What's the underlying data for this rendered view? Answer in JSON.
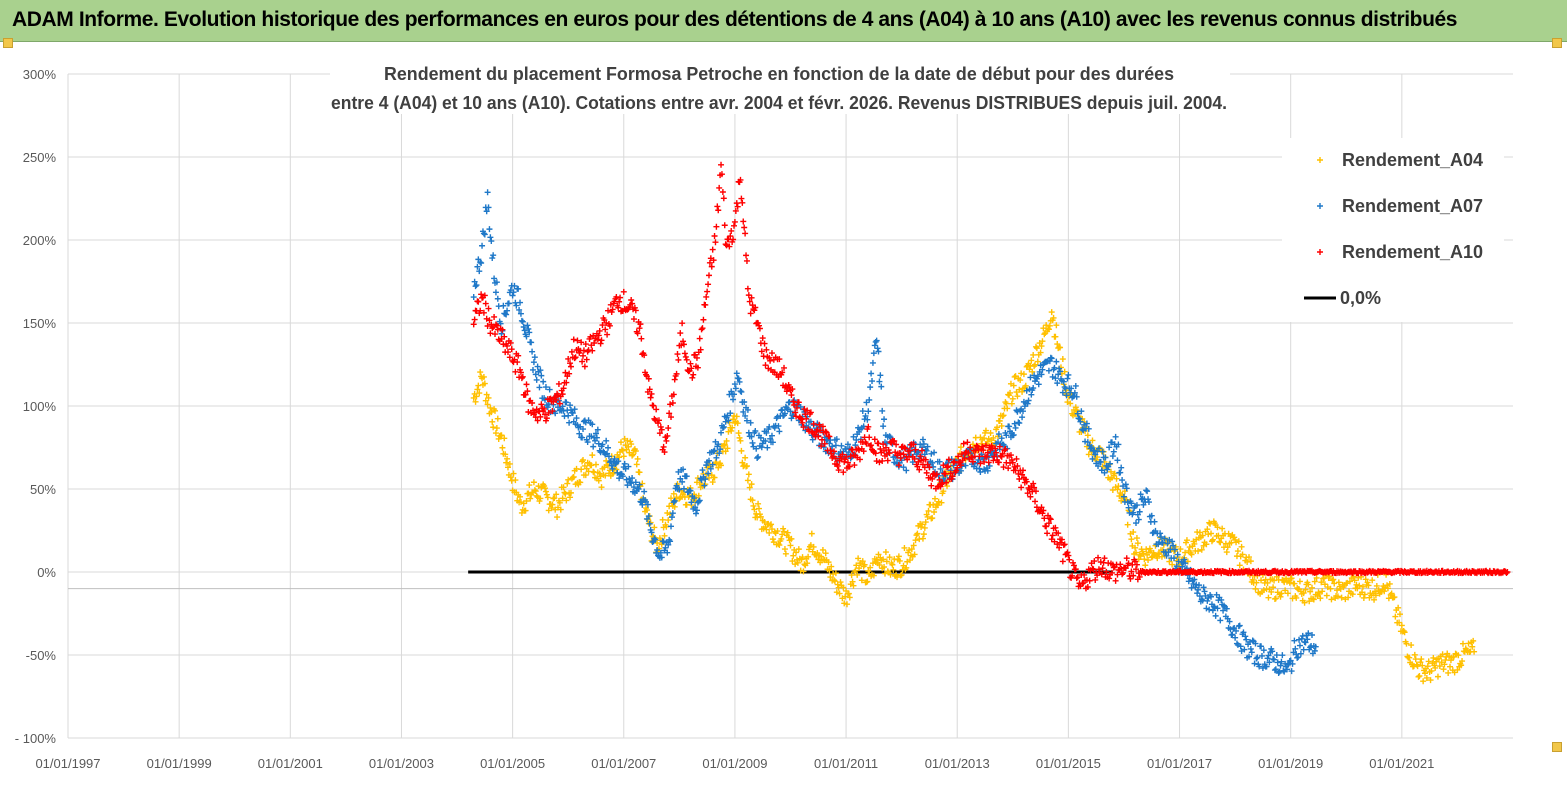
{
  "header": {
    "title": "ADAM Informe. Evolution historique des performances en euros pour des détentions de 4 ans (A04) à 10 ans (A10) avec les revenus connus distribués"
  },
  "colors": {
    "header_bg": "#a9d18e",
    "A04": "#ffc000",
    "A07": "#1f78c8",
    "A10": "#ff0000",
    "zero": "#000000",
    "grid": "#d9d9d9"
  },
  "chart_data": {
    "type": "scatter",
    "title_line1": "Rendement du placement Formosa Petroche  en fonction de la date de début pour des durées",
    "title_line2": "entre 4 (A04) et 10 ans (A10).  Cotations entre avr. 2004 et févr. 2026. Revenus DISTRIBUES depuis juil. 2004.",
    "xlabel": "",
    "ylabel": "",
    "x_range": [
      1997.0,
      2023.0
    ],
    "ylim": [
      -100,
      300
    ],
    "y_ticks": [
      300,
      250,
      200,
      150,
      100,
      50,
      0,
      -50,
      -100
    ],
    "y_tick_labels": [
      "300%",
      "250%",
      "200%",
      "150%",
      "100%",
      "50%",
      "0%",
      "-50%",
      "- 100%"
    ],
    "x_ticks": [
      1997,
      1999,
      2001,
      2003,
      2005,
      2007,
      2009,
      2011,
      2013,
      2015,
      2017,
      2019,
      2021
    ],
    "x_tick_labels": [
      "01/01/1997",
      "01/01/1999",
      "01/01/2001",
      "01/01/2003",
      "01/01/2005",
      "01/01/2007",
      "01/01/2009",
      "01/01/2011",
      "01/01/2013",
      "01/01/2015",
      "01/01/2017",
      "01/01/2019",
      "01/01/2021"
    ],
    "grid": true,
    "legend_position": "top-right",
    "series": [
      {
        "name": "Rendement_A04",
        "color": "#ffc000",
        "marker": "plus",
        "points": [
          [
            2004.3,
            105
          ],
          [
            2004.45,
            118
          ],
          [
            2004.6,
            98
          ],
          [
            2004.8,
            80
          ],
          [
            2005.0,
            55
          ],
          [
            2005.15,
            40
          ],
          [
            2005.4,
            50
          ],
          [
            2005.6,
            45
          ],
          [
            2005.8,
            40
          ],
          [
            2006.0,
            50
          ],
          [
            2006.2,
            60
          ],
          [
            2006.4,
            68
          ],
          [
            2006.6,
            58
          ],
          [
            2006.8,
            65
          ],
          [
            2007.0,
            75
          ],
          [
            2007.2,
            70
          ],
          [
            2007.4,
            35
          ],
          [
            2007.6,
            15
          ],
          [
            2007.8,
            35
          ],
          [
            2008.0,
            50
          ],
          [
            2008.2,
            45
          ],
          [
            2008.4,
            55
          ],
          [
            2008.6,
            60
          ],
          [
            2008.8,
            72
          ],
          [
            2009.0,
            95
          ],
          [
            2009.2,
            60
          ],
          [
            2009.4,
            35
          ],
          [
            2009.6,
            28
          ],
          [
            2009.8,
            22
          ],
          [
            2010.0,
            15
          ],
          [
            2010.2,
            5
          ],
          [
            2010.4,
            18
          ],
          [
            2010.6,
            8
          ],
          [
            2010.8,
            -5
          ],
          [
            2011.0,
            -15
          ],
          [
            2011.2,
            5
          ],
          [
            2011.4,
            -5
          ],
          [
            2011.6,
            10
          ],
          [
            2011.8,
            2
          ],
          [
            2012.0,
            5
          ],
          [
            2012.2,
            15
          ],
          [
            2012.4,
            28
          ],
          [
            2012.6,
            40
          ],
          [
            2012.8,
            55
          ],
          [
            2013.0,
            65
          ],
          [
            2013.2,
            75
          ],
          [
            2013.4,
            80
          ],
          [
            2013.6,
            78
          ],
          [
            2013.8,
            90
          ],
          [
            2014.0,
            110
          ],
          [
            2014.2,
            115
          ],
          [
            2014.4,
            130
          ],
          [
            2014.6,
            145
          ],
          [
            2014.7,
            158
          ],
          [
            2014.85,
            130
          ],
          [
            2015.0,
            105
          ],
          [
            2015.2,
            90
          ],
          [
            2015.4,
            75
          ],
          [
            2015.6,
            70
          ],
          [
            2015.8,
            55
          ],
          [
            2016.0,
            45
          ],
          [
            2016.2,
            15
          ],
          [
            2016.4,
            10
          ],
          [
            2016.6,
            15
          ],
          [
            2016.8,
            12
          ],
          [
            2017.0,
            8
          ],
          [
            2017.2,
            15
          ],
          [
            2017.4,
            20
          ],
          [
            2017.6,
            25
          ],
          [
            2017.8,
            20
          ],
          [
            2018.0,
            15
          ],
          [
            2018.2,
            5
          ],
          [
            2018.4,
            -5
          ],
          [
            2018.6,
            -12
          ],
          [
            2018.8,
            -8
          ],
          [
            2019.0,
            -10
          ],
          [
            2019.3,
            -12
          ],
          [
            2019.6,
            -8
          ],
          [
            2019.9,
            -12
          ],
          [
            2020.2,
            -8
          ],
          [
            2020.5,
            -10
          ],
          [
            2020.7,
            -5
          ],
          [
            2020.9,
            -25
          ],
          [
            2021.1,
            -45
          ],
          [
            2021.3,
            -58
          ],
          [
            2021.5,
            -60
          ],
          [
            2021.7,
            -55
          ],
          [
            2021.9,
            -55
          ],
          [
            2022.1,
            -50
          ],
          [
            2022.3,
            -48
          ]
        ]
      },
      {
        "name": "Rendement_A07",
        "color": "#1f78c8",
        "marker": "plus",
        "points": [
          [
            2004.3,
            170
          ],
          [
            2004.45,
            195
          ],
          [
            2004.55,
            225
          ],
          [
            2004.65,
            185
          ],
          [
            2004.8,
            150
          ],
          [
            2005.0,
            172
          ],
          [
            2005.15,
            160
          ],
          [
            2005.35,
            130
          ],
          [
            2005.55,
            110
          ],
          [
            2005.75,
            100
          ],
          [
            2005.95,
            100
          ],
          [
            2006.15,
            90
          ],
          [
            2006.35,
            85
          ],
          [
            2006.55,
            80
          ],
          [
            2006.75,
            70
          ],
          [
            2006.95,
            60
          ],
          [
            2007.15,
            55
          ],
          [
            2007.35,
            45
          ],
          [
            2007.5,
            25
          ],
          [
            2007.65,
            10
          ],
          [
            2007.8,
            15
          ],
          [
            2007.95,
            55
          ],
          [
            2008.1,
            55
          ],
          [
            2008.3,
            40
          ],
          [
            2008.5,
            65
          ],
          [
            2008.7,
            75
          ],
          [
            2008.9,
            100
          ],
          [
            2009.05,
            120
          ],
          [
            2009.2,
            95
          ],
          [
            2009.4,
            75
          ],
          [
            2009.6,
            80
          ],
          [
            2009.8,
            90
          ],
          [
            2010.0,
            100
          ],
          [
            2010.2,
            95
          ],
          [
            2010.4,
            85
          ],
          [
            2010.6,
            80
          ],
          [
            2010.8,
            75
          ],
          [
            2011.0,
            70
          ],
          [
            2011.2,
            80
          ],
          [
            2011.4,
            100
          ],
          [
            2011.55,
            140
          ],
          [
            2011.7,
            80
          ],
          [
            2011.9,
            70
          ],
          [
            2012.1,
            68
          ],
          [
            2012.3,
            75
          ],
          [
            2012.5,
            70
          ],
          [
            2012.7,
            60
          ],
          [
            2012.9,
            62
          ],
          [
            2013.1,
            65
          ],
          [
            2013.3,
            70
          ],
          [
            2013.5,
            65
          ],
          [
            2013.7,
            75
          ],
          [
            2013.9,
            80
          ],
          [
            2014.1,
            95
          ],
          [
            2014.3,
            110
          ],
          [
            2014.5,
            120
          ],
          [
            2014.7,
            125
          ],
          [
            2014.9,
            115
          ],
          [
            2015.1,
            110
          ],
          [
            2015.3,
            85
          ],
          [
            2015.5,
            70
          ],
          [
            2015.7,
            65
          ],
          [
            2015.85,
            80
          ],
          [
            2016.0,
            50
          ],
          [
            2016.2,
            35
          ],
          [
            2016.4,
            45
          ],
          [
            2016.6,
            20
          ],
          [
            2016.8,
            15
          ],
          [
            2017.0,
            5
          ],
          [
            2017.2,
            -5
          ],
          [
            2017.4,
            -15
          ],
          [
            2017.6,
            -18
          ],
          [
            2017.8,
            -25
          ],
          [
            2018.0,
            -35
          ],
          [
            2018.2,
            -45
          ],
          [
            2018.4,
            -50
          ],
          [
            2018.6,
            -52
          ],
          [
            2018.8,
            -55
          ],
          [
            2018.95,
            -60
          ],
          [
            2019.1,
            -45
          ],
          [
            2019.3,
            -42
          ],
          [
            2019.45,
            -45
          ]
        ]
      },
      {
        "name": "Rendement_A10",
        "color": "#ff0000",
        "marker": "plus",
        "points": [
          [
            2004.3,
            150
          ],
          [
            2004.45,
            165
          ],
          [
            2004.6,
            150
          ],
          [
            2004.8,
            140
          ],
          [
            2005.0,
            130
          ],
          [
            2005.15,
            120
          ],
          [
            2005.3,
            100
          ],
          [
            2005.5,
            95
          ],
          [
            2005.7,
            100
          ],
          [
            2005.9,
            110
          ],
          [
            2006.1,
            135
          ],
          [
            2006.3,
            130
          ],
          [
            2006.5,
            140
          ],
          [
            2006.7,
            150
          ],
          [
            2006.9,
            165
          ],
          [
            2007.1,
            160
          ],
          [
            2007.3,
            145
          ],
          [
            2007.45,
            110
          ],
          [
            2007.6,
            90
          ],
          [
            2007.75,
            75
          ],
          [
            2007.9,
            110
          ],
          [
            2008.05,
            145
          ],
          [
            2008.2,
            120
          ],
          [
            2008.35,
            130
          ],
          [
            2008.5,
            170
          ],
          [
            2008.65,
            200
          ],
          [
            2008.75,
            245
          ],
          [
            2008.85,
            195
          ],
          [
            2009.0,
            210
          ],
          [
            2009.1,
            240
          ],
          [
            2009.25,
            165
          ],
          [
            2009.4,
            150
          ],
          [
            2009.55,
            130
          ],
          [
            2009.7,
            125
          ],
          [
            2009.85,
            120
          ],
          [
            2010.0,
            105
          ],
          [
            2010.2,
            95
          ],
          [
            2010.4,
            90
          ],
          [
            2010.6,
            80
          ],
          [
            2010.8,
            70
          ],
          [
            2011.0,
            65
          ],
          [
            2011.2,
            70
          ],
          [
            2011.4,
            85
          ],
          [
            2011.6,
            70
          ],
          [
            2011.8,
            75
          ],
          [
            2012.0,
            70
          ],
          [
            2012.2,
            72
          ],
          [
            2012.4,
            65
          ],
          [
            2012.6,
            55
          ],
          [
            2012.8,
            60
          ],
          [
            2013.0,
            65
          ],
          [
            2013.2,
            75
          ],
          [
            2013.4,
            70
          ],
          [
            2013.6,
            72
          ],
          [
            2013.8,
            70
          ],
          [
            2014.0,
            65
          ],
          [
            2014.2,
            55
          ],
          [
            2014.4,
            45
          ],
          [
            2014.6,
            30
          ],
          [
            2014.8,
            20
          ],
          [
            2015.0,
            5
          ],
          [
            2015.2,
            -10
          ],
          [
            2015.4,
            0
          ],
          [
            2015.6,
            5
          ],
          [
            2015.8,
            0
          ],
          [
            2016.0,
            2
          ],
          [
            2016.3,
            0
          ],
          [
            2016.8,
            0
          ],
          [
            2017.4,
            0
          ],
          [
            2018.0,
            0
          ],
          [
            2018.6,
            0
          ],
          [
            2019.2,
            0
          ],
          [
            2019.8,
            0
          ],
          [
            2020.4,
            0
          ],
          [
            2021.0,
            0
          ],
          [
            2021.6,
            0
          ],
          [
            2022.2,
            0
          ],
          [
            2022.9,
            0
          ]
        ]
      }
    ],
    "zero_line": {
      "name": "0,0%",
      "x_start": 2004.2,
      "x_end": 2015.8,
      "value": 0
    },
    "legend": [
      {
        "label": "Rendement_A04",
        "series": "Rendement_A04"
      },
      {
        "label": "Rendement_A07",
        "series": "Rendement_A07"
      },
      {
        "label": "Rendement_A10",
        "series": "Rendement_A10"
      },
      {
        "label": "0,0%",
        "series": "zero"
      }
    ]
  }
}
